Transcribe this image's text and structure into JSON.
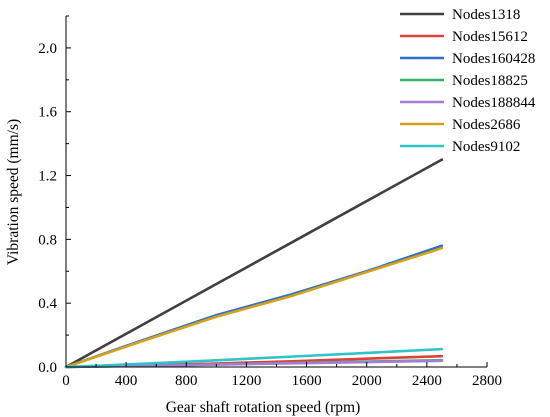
{
  "chart_data": {
    "type": "line",
    "title": "",
    "xlabel": "Gear shaft rotation speed (rpm)",
    "ylabel": "Vibration speed (mm/s)",
    "xlim": [
      0,
      2800
    ],
    "ylim": [
      0,
      2.2
    ],
    "xticks": [
      0,
      400,
      800,
      1200,
      1600,
      2000,
      2400,
      2800
    ],
    "yticks": [
      0.0,
      0.4,
      0.8,
      1.2,
      1.6,
      2.0
    ],
    "xtick_labels": [
      "0",
      "400",
      "800",
      "1200",
      "1600",
      "2000",
      "2400",
      "2800"
    ],
    "ytick_labels": [
      "0.0",
      "0.4",
      "0.8",
      "1.2",
      "1.6",
      "2.0"
    ],
    "grid": false,
    "legend_position": "top-right, outside plot area",
    "series": [
      {
        "name": "Nodes1318",
        "color": "#404040",
        "x": [
          0,
          500,
          1000,
          1500,
          2000,
          2500
        ],
        "y": [
          0,
          0.26,
          0.52,
          0.78,
          1.04,
          1.3
        ]
      },
      {
        "name": "Nodes15612",
        "color": "#e0403a",
        "x": [
          0,
          500,
          1000,
          1500,
          2000,
          2500
        ],
        "y": [
          0,
          0.01,
          0.022,
          0.036,
          0.052,
          0.068
        ]
      },
      {
        "name": "Nodes160428",
        "color": "#2f6fc8",
        "x": [
          0,
          500,
          1000,
          1500,
          2000,
          2500
        ],
        "y": [
          0,
          0.165,
          0.325,
          0.455,
          0.6,
          0.76
        ]
      },
      {
        "name": "Nodes18825",
        "color": "#2fb36a",
        "x": [
          0,
          500,
          1000,
          1500,
          2000,
          2500
        ],
        "y": [
          0,
          0.008,
          0.016,
          0.025,
          0.034,
          0.043
        ]
      },
      {
        "name": "Nodes188844",
        "color": "#a27ed6",
        "x": [
          0,
          500,
          1000,
          1500,
          2000,
          2500
        ],
        "y": [
          0,
          0.007,
          0.015,
          0.023,
          0.031,
          0.039
        ]
      },
      {
        "name": "Nodes2686",
        "color": "#d4a21a",
        "x": [
          0,
          500,
          1000,
          1500,
          2000,
          2500
        ],
        "y": [
          0,
          0.16,
          0.315,
          0.445,
          0.595,
          0.745
        ]
      },
      {
        "name": "Nodes9102",
        "color": "#2ec4c8",
        "x": [
          0,
          500,
          1000,
          1500,
          2000,
          2500
        ],
        "y": [
          0,
          0.02,
          0.042,
          0.065,
          0.088,
          0.112
        ]
      }
    ]
  }
}
